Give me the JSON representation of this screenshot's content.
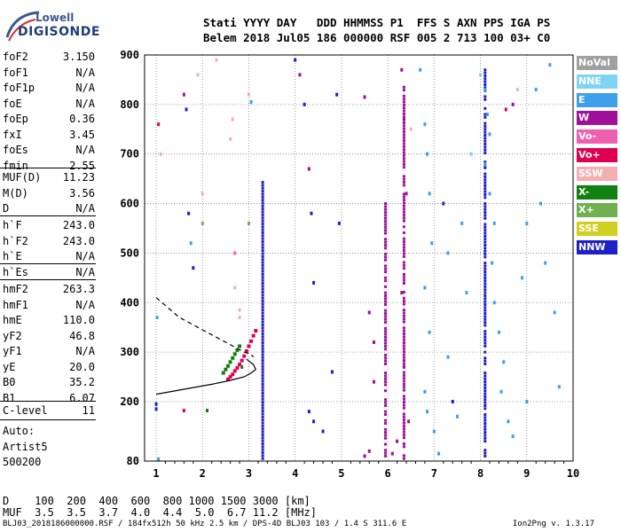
{
  "logo": {
    "line1": "Lowell",
    "line2": "DIGISONDE"
  },
  "header": {
    "line1": "Stati YYYY DAY   DDD HHMMSS P1  FFS S AXN PPS IGA PS",
    "line2": "Belem 2018 Jul05 186 000000 RSF 005 2 713 100 03+ C0"
  },
  "params_a": [
    {
      "k": "foF2",
      "v": "3.150"
    },
    {
      "k": "foF1",
      "v": "N/A"
    },
    {
      "k": "foF1p",
      "v": "N/A"
    },
    {
      "k": "foE",
      "v": "N/A"
    },
    {
      "k": "foEp",
      "v": "0.36"
    },
    {
      "k": "fxI",
      "v": "3.45"
    },
    {
      "k": "foEs",
      "v": "N/A"
    },
    {
      "k": "fmin",
      "v": "2.55"
    }
  ],
  "params_b": [
    {
      "k": "MUF(D)",
      "v": "11.23"
    },
    {
      "k": "M(D)",
      "v": "3.56"
    },
    {
      "k": "D",
      "v": "N/A"
    }
  ],
  "params_c": [
    {
      "k": "h`F",
      "v": "243.0"
    },
    {
      "k": "h`F2",
      "v": "243.0"
    },
    {
      "k": "h`E",
      "v": "N/A"
    },
    {
      "k": "h`Es",
      "v": "N/A"
    }
  ],
  "params_d": [
    {
      "k": "hmF2",
      "v": "263.3"
    },
    {
      "k": "hmF1",
      "v": "N/A"
    },
    {
      "k": "hmE",
      "v": "110.0"
    },
    {
      "k": "yF2",
      "v": "46.8"
    },
    {
      "k": "yF1",
      "v": "N/A"
    },
    {
      "k": "yE",
      "v": "20.0"
    },
    {
      "k": "B0",
      "v": "35.2"
    },
    {
      "k": "B1",
      "v": "6.07"
    }
  ],
  "params_e": [
    {
      "k": "C-level",
      "v": "11"
    }
  ],
  "autoscale": {
    "line1": "Auto:",
    "line2": "Artist5",
    "line3": "500200"
  },
  "legend": [
    {
      "label": "NoVal",
      "color": "#a0a0a0"
    },
    {
      "label": "NNE",
      "color": "#7fd4f5"
    },
    {
      "label": "E",
      "color": "#3da0e8"
    },
    {
      "label": "W",
      "color": "#a0109a"
    },
    {
      "label": "Vo-",
      "color": "#f060b0"
    },
    {
      "label": "Vo+",
      "color": "#e00050"
    },
    {
      "label": "SSW",
      "color": "#f4b0b0"
    },
    {
      "label": "X-",
      "color": "#108010"
    },
    {
      "label": "X+",
      "color": "#70b050"
    },
    {
      "label": "SSE",
      "color": "#d0d020"
    },
    {
      "label": "NNW",
      "color": "#2020c8"
    }
  ],
  "footer": {
    "d_row": "D    100  200  400  600  800 1000 1500 3000 [km]",
    "muf_row": "MUF  3.5  3.5  3.7  4.0  4.4  5.0  6.7 11.2 [MHz]",
    "file": "BLJ03_2018186000000.RSF / 184fx512h 50 kHz 2.5 km / DPS-4D BLJ03 103 / 1.4 S 311.6 E",
    "version": "Ion2Png v. 1.3.17"
  },
  "chart_data": {
    "type": "scatter",
    "xlabel": "",
    "ylabel": "",
    "xlim": [
      0.75,
      10
    ],
    "ylim": [
      80,
      900
    ],
    "xticks": [
      1,
      2,
      3,
      4,
      5,
      6,
      7,
      8,
      9,
      10
    ],
    "yticks": [
      80,
      200,
      300,
      400,
      500,
      600,
      700,
      800,
      900
    ],
    "grid": true,
    "curves": {
      "profile_solid": [
        [
          1.0,
          215
        ],
        [
          1.6,
          225
        ],
        [
          2.2,
          235
        ],
        [
          2.6,
          243
        ],
        [
          2.9,
          250
        ],
        [
          3.05,
          258
        ],
        [
          3.15,
          265
        ],
        [
          3.1,
          275
        ],
        [
          3.0,
          282
        ],
        [
          2.95,
          286
        ]
      ],
      "profile_dashed": [
        [
          1.0,
          410
        ],
        [
          1.5,
          370
        ],
        [
          2.0,
          345
        ],
        [
          2.4,
          325
        ],
        [
          2.7,
          310
        ],
        [
          2.9,
          300
        ],
        [
          3.05,
          295
        ],
        [
          3.1,
          290
        ]
      ]
    },
    "x_ordinary_trace": [
      [
        2.55,
        245
      ],
      [
        2.6,
        250
      ],
      [
        2.65,
        255
      ],
      [
        2.7,
        262
      ],
      [
        2.75,
        268
      ],
      [
        2.8,
        275
      ],
      [
        2.85,
        283
      ],
      [
        2.9,
        292
      ],
      [
        2.95,
        302
      ],
      [
        3.0,
        312
      ],
      [
        3.05,
        322
      ],
      [
        3.1,
        333
      ],
      [
        3.15,
        343
      ]
    ],
    "x_green_trace": [
      [
        2.45,
        258
      ],
      [
        2.5,
        265
      ],
      [
        2.55,
        272
      ],
      [
        2.6,
        280
      ],
      [
        2.65,
        288
      ],
      [
        2.7,
        296
      ],
      [
        2.75,
        304
      ],
      [
        2.8,
        312
      ]
    ],
    "nnw_columns": [
      {
        "x": 3.3,
        "y0": 85,
        "y1": 645
      },
      {
        "x": 5.95,
        "y0": 90,
        "y1": 610
      },
      {
        "x": 6.35,
        "y0": 85,
        "y1": 840
      },
      {
        "x": 8.1,
        "y0": 90,
        "y1": 870
      }
    ],
    "points": [
      {
        "x": 1.0,
        "y": 185,
        "c": "NNW"
      },
      {
        "x": 1.0,
        "y": 195,
        "c": "NNW"
      },
      {
        "x": 1.05,
        "y": 760,
        "c": "Vo+"
      },
      {
        "x": 1.1,
        "y": 700,
        "c": "SSW"
      },
      {
        "x": 1.02,
        "y": 370,
        "c": "E"
      },
      {
        "x": 1.05,
        "y": 84,
        "c": "E"
      },
      {
        "x": 1.6,
        "y": 820,
        "c": "W"
      },
      {
        "x": 1.65,
        "y": 790,
        "c": "NNW"
      },
      {
        "x": 1.7,
        "y": 580,
        "c": "NNW"
      },
      {
        "x": 1.75,
        "y": 520,
        "c": "E"
      },
      {
        "x": 1.8,
        "y": 470,
        "c": "NNW"
      },
      {
        "x": 1.6,
        "y": 182,
        "c": "Vo+"
      },
      {
        "x": 2.0,
        "y": 620,
        "c": "SSW"
      },
      {
        "x": 2.0,
        "y": 560,
        "c": "X+"
      },
      {
        "x": 1.9,
        "y": 860,
        "c": "SSW"
      },
      {
        "x": 2.1,
        "y": 182,
        "c": "X-"
      },
      {
        "x": 2.3,
        "y": 890,
        "c": "SSW"
      },
      {
        "x": 2.6,
        "y": 730,
        "c": "SSW"
      },
      {
        "x": 2.65,
        "y": 770,
        "c": "SSW"
      },
      {
        "x": 2.7,
        "y": 500,
        "c": "Vo-"
      },
      {
        "x": 2.7,
        "y": 430,
        "c": "SSW"
      },
      {
        "x": 2.8,
        "y": 385,
        "c": "SSW"
      },
      {
        "x": 2.8,
        "y": 370,
        "c": "SSW"
      },
      {
        "x": 2.85,
        "y": 270,
        "c": "X-"
      },
      {
        "x": 3.0,
        "y": 820,
        "c": "SSW"
      },
      {
        "x": 3.05,
        "y": 805,
        "c": "E"
      },
      {
        "x": 3.0,
        "y": 560,
        "c": "X+"
      },
      {
        "x": 4.0,
        "y": 890,
        "c": "NNW"
      },
      {
        "x": 4.1,
        "y": 860,
        "c": "W"
      },
      {
        "x": 4.2,
        "y": 800,
        "c": "NNW"
      },
      {
        "x": 4.3,
        "y": 670,
        "c": "W"
      },
      {
        "x": 4.35,
        "y": 580,
        "c": "NNW"
      },
      {
        "x": 4.4,
        "y": 440,
        "c": "NNW"
      },
      {
        "x": 4.3,
        "y": 180,
        "c": "NNW"
      },
      {
        "x": 4.4,
        "y": 160,
        "c": "NNW"
      },
      {
        "x": 4.6,
        "y": 140,
        "c": "NNW"
      },
      {
        "x": 4.8,
        "y": 260,
        "c": "NNW"
      },
      {
        "x": 4.9,
        "y": 820,
        "c": "NNW"
      },
      {
        "x": 4.95,
        "y": 560,
        "c": "NNW"
      },
      {
        "x": 5.5,
        "y": 815,
        "c": "W"
      },
      {
        "x": 5.6,
        "y": 380,
        "c": "W"
      },
      {
        "x": 5.7,
        "y": 320,
        "c": "W"
      },
      {
        "x": 5.7,
        "y": 240,
        "c": "W"
      },
      {
        "x": 5.6,
        "y": 100,
        "c": "W"
      },
      {
        "x": 5.5,
        "y": 90,
        "c": "W"
      },
      {
        "x": 6.3,
        "y": 870,
        "c": "W"
      },
      {
        "x": 6.35,
        "y": 770,
        "c": "W"
      },
      {
        "x": 6.4,
        "y": 620,
        "c": "W"
      },
      {
        "x": 6.3,
        "y": 420,
        "c": "W"
      },
      {
        "x": 6.35,
        "y": 270,
        "c": "W"
      },
      {
        "x": 6.45,
        "y": 160,
        "c": "W"
      },
      {
        "x": 6.2,
        "y": 120,
        "c": "W"
      },
      {
        "x": 6.1,
        "y": 95,
        "c": "W"
      },
      {
        "x": 6.5,
        "y": 750,
        "c": "SSW"
      },
      {
        "x": 6.7,
        "y": 870,
        "c": "E"
      },
      {
        "x": 6.8,
        "y": 760,
        "c": "E"
      },
      {
        "x": 6.85,
        "y": 700,
        "c": "E"
      },
      {
        "x": 6.9,
        "y": 620,
        "c": "E"
      },
      {
        "x": 6.95,
        "y": 520,
        "c": "E"
      },
      {
        "x": 6.8,
        "y": 430,
        "c": "E"
      },
      {
        "x": 6.9,
        "y": 340,
        "c": "E"
      },
      {
        "x": 6.8,
        "y": 220,
        "c": "E"
      },
      {
        "x": 6.85,
        "y": 180,
        "c": "E"
      },
      {
        "x": 7.0,
        "y": 140,
        "c": "E"
      },
      {
        "x": 7.1,
        "y": 95,
        "c": "E"
      },
      {
        "x": 7.2,
        "y": 600,
        "c": "NNW"
      },
      {
        "x": 7.3,
        "y": 500,
        "c": "E"
      },
      {
        "x": 7.3,
        "y": 290,
        "c": "E"
      },
      {
        "x": 7.4,
        "y": 200,
        "c": "NNW"
      },
      {
        "x": 7.5,
        "y": 170,
        "c": "E"
      },
      {
        "x": 7.6,
        "y": 560,
        "c": "E"
      },
      {
        "x": 7.7,
        "y": 420,
        "c": "E"
      },
      {
        "x": 7.8,
        "y": 700,
        "c": "NNE"
      },
      {
        "x": 8.0,
        "y": 860,
        "c": "NNE"
      },
      {
        "x": 8.1,
        "y": 830,
        "c": "E"
      },
      {
        "x": 8.15,
        "y": 780,
        "c": "E"
      },
      {
        "x": 8.2,
        "y": 740,
        "c": "E"
      },
      {
        "x": 8.1,
        "y": 680,
        "c": "E"
      },
      {
        "x": 8.2,
        "y": 620,
        "c": "E"
      },
      {
        "x": 8.3,
        "y": 560,
        "c": "E"
      },
      {
        "x": 8.25,
        "y": 480,
        "c": "E"
      },
      {
        "x": 8.3,
        "y": 400,
        "c": "E"
      },
      {
        "x": 8.4,
        "y": 340,
        "c": "E"
      },
      {
        "x": 8.5,
        "y": 280,
        "c": "E"
      },
      {
        "x": 8.45,
        "y": 220,
        "c": "E"
      },
      {
        "x": 8.6,
        "y": 160,
        "c": "E"
      },
      {
        "x": 8.7,
        "y": 130,
        "c": "E"
      },
      {
        "x": 8.55,
        "y": 790,
        "c": "Vo+"
      },
      {
        "x": 8.7,
        "y": 800,
        "c": "W"
      },
      {
        "x": 8.8,
        "y": 830,
        "c": "SSW"
      },
      {
        "x": 8.9,
        "y": 450,
        "c": "E"
      },
      {
        "x": 9.0,
        "y": 560,
        "c": "E"
      },
      {
        "x": 9.0,
        "y": 200,
        "c": "E"
      },
      {
        "x": 9.2,
        "y": 830,
        "c": "E"
      },
      {
        "x": 9.3,
        "y": 600,
        "c": "E"
      },
      {
        "x": 9.4,
        "y": 480,
        "c": "E"
      },
      {
        "x": 9.5,
        "y": 880,
        "c": "E"
      },
      {
        "x": 9.6,
        "y": 380,
        "c": "E"
      },
      {
        "x": 9.7,
        "y": 230,
        "c": "E"
      }
    ]
  }
}
